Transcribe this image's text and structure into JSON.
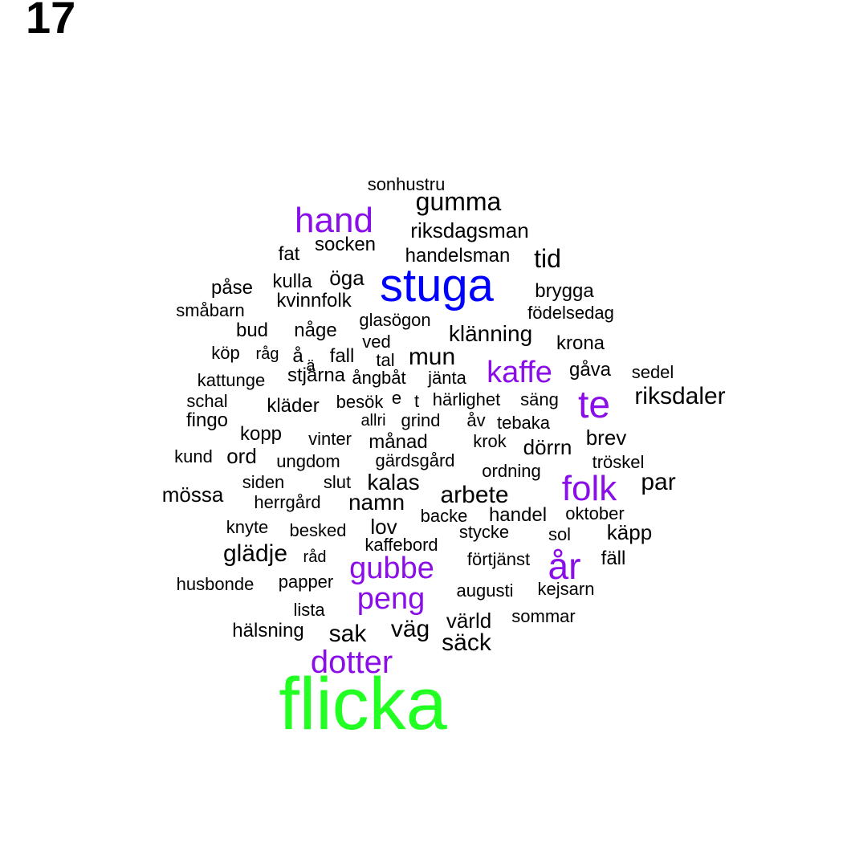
{
  "panel_label": "17",
  "colors": {
    "default": "#000000",
    "purple": "#8a0ee8",
    "blue": "#0000ff",
    "green": "#22ff22"
  },
  "words": [
    {
      "text": "sonhustru",
      "color": "default"
    },
    {
      "text": "gumma",
      "color": "default"
    },
    {
      "text": "hand",
      "color": "purple"
    },
    {
      "text": "riksdagsman",
      "color": "default"
    },
    {
      "text": "socken",
      "color": "default"
    },
    {
      "text": "fat",
      "color": "default"
    },
    {
      "text": "handelsman",
      "color": "default"
    },
    {
      "text": "tid",
      "color": "default"
    },
    {
      "text": "öga",
      "color": "default"
    },
    {
      "text": "kulla",
      "color": "default"
    },
    {
      "text": "stuga",
      "color": "blue"
    },
    {
      "text": "påse",
      "color": "default"
    },
    {
      "text": "kvinnfolk",
      "color": "default"
    },
    {
      "text": "brygga",
      "color": "default"
    },
    {
      "text": "småbarn",
      "color": "default"
    },
    {
      "text": "födelsedag",
      "color": "default"
    },
    {
      "text": "glasögon",
      "color": "default"
    },
    {
      "text": "bud",
      "color": "default"
    },
    {
      "text": "någe",
      "color": "default"
    },
    {
      "text": "klänning",
      "color": "default"
    },
    {
      "text": "ved",
      "color": "default"
    },
    {
      "text": "krona",
      "color": "default"
    },
    {
      "text": "köp",
      "color": "default"
    },
    {
      "text": "råg",
      "color": "default"
    },
    {
      "text": "å",
      "color": "default"
    },
    {
      "text": "fall",
      "color": "default"
    },
    {
      "text": "tal",
      "color": "default"
    },
    {
      "text": "mun",
      "color": "default"
    },
    {
      "text": "ä",
      "color": "default"
    },
    {
      "text": "kaffe",
      "color": "purple"
    },
    {
      "text": "gåva",
      "color": "default"
    },
    {
      "text": "sedel",
      "color": "default"
    },
    {
      "text": "stjärna",
      "color": "default"
    },
    {
      "text": "ångbåt",
      "color": "default"
    },
    {
      "text": "jänta",
      "color": "default"
    },
    {
      "text": "kattunge",
      "color": "default"
    },
    {
      "text": "te",
      "color": "purple"
    },
    {
      "text": "riksdaler",
      "color": "default"
    },
    {
      "text": "schal",
      "color": "default"
    },
    {
      "text": "kläder",
      "color": "default"
    },
    {
      "text": "besök",
      "color": "default"
    },
    {
      "text": "e",
      "color": "default"
    },
    {
      "text": "t",
      "color": "default"
    },
    {
      "text": "härlighet",
      "color": "default"
    },
    {
      "text": "säng",
      "color": "default"
    },
    {
      "text": "fingo",
      "color": "default"
    },
    {
      "text": "allri",
      "color": "default"
    },
    {
      "text": "grind",
      "color": "default"
    },
    {
      "text": "åv",
      "color": "default"
    },
    {
      "text": "tebaka",
      "color": "default"
    },
    {
      "text": "kopp",
      "color": "default"
    },
    {
      "text": "vinter",
      "color": "default"
    },
    {
      "text": "månad",
      "color": "default"
    },
    {
      "text": "krok",
      "color": "default"
    },
    {
      "text": "dörrn",
      "color": "default"
    },
    {
      "text": "brev",
      "color": "default"
    },
    {
      "text": "kund",
      "color": "default"
    },
    {
      "text": "ord",
      "color": "default"
    },
    {
      "text": "ungdom",
      "color": "default"
    },
    {
      "text": "gärdsgård",
      "color": "default"
    },
    {
      "text": "tröskel",
      "color": "default"
    },
    {
      "text": "ordning",
      "color": "default"
    },
    {
      "text": "folk",
      "color": "purple"
    },
    {
      "text": "par",
      "color": "default"
    },
    {
      "text": "siden",
      "color": "default"
    },
    {
      "text": "slut",
      "color": "default"
    },
    {
      "text": "kalas",
      "color": "default"
    },
    {
      "text": "mössa",
      "color": "default"
    },
    {
      "text": "arbete",
      "color": "default"
    },
    {
      "text": "herrgård",
      "color": "default"
    },
    {
      "text": "namn",
      "color": "default"
    },
    {
      "text": "backe",
      "color": "default"
    },
    {
      "text": "handel",
      "color": "default"
    },
    {
      "text": "oktober",
      "color": "default"
    },
    {
      "text": "knyte",
      "color": "default"
    },
    {
      "text": "besked",
      "color": "default"
    },
    {
      "text": "lov",
      "color": "default"
    },
    {
      "text": "stycke",
      "color": "default"
    },
    {
      "text": "sol",
      "color": "default"
    },
    {
      "text": "käpp",
      "color": "default"
    },
    {
      "text": "kaffebord",
      "color": "default"
    },
    {
      "text": "glädje",
      "color": "default"
    },
    {
      "text": "råd",
      "color": "default"
    },
    {
      "text": "förtjänst",
      "color": "default"
    },
    {
      "text": "år",
      "color": "purple"
    },
    {
      "text": "fäll",
      "color": "default"
    },
    {
      "text": "gubbe",
      "color": "purple"
    },
    {
      "text": "husbonde",
      "color": "default"
    },
    {
      "text": "papper",
      "color": "default"
    },
    {
      "text": "augusti",
      "color": "default"
    },
    {
      "text": "kejsarn",
      "color": "default"
    },
    {
      "text": "peng",
      "color": "purple"
    },
    {
      "text": "lista",
      "color": "default"
    },
    {
      "text": "värld",
      "color": "default"
    },
    {
      "text": "sommar",
      "color": "default"
    },
    {
      "text": "hälsning",
      "color": "default"
    },
    {
      "text": "sak",
      "color": "default"
    },
    {
      "text": "väg",
      "color": "default"
    },
    {
      "text": "säck",
      "color": "default"
    },
    {
      "text": "dotter",
      "color": "purple"
    },
    {
      "text": "flicka",
      "color": "green"
    }
  ]
}
